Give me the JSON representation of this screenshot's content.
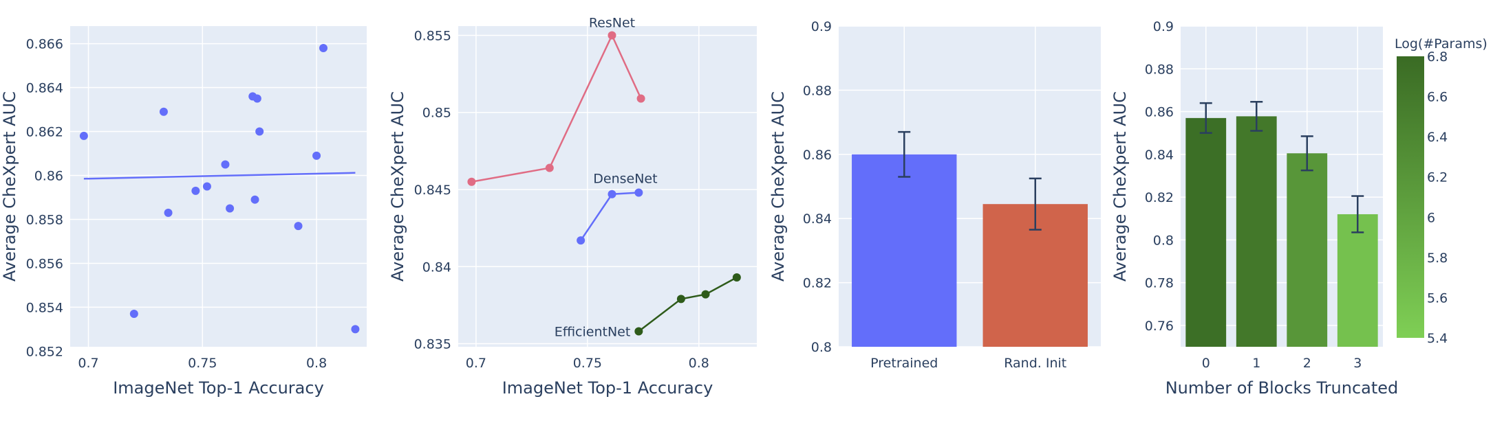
{
  "colors": {
    "plot_bg": "#E5ECF6",
    "grid": "#ffffff",
    "text": "#2a3f5f",
    "scatter": "#636EFA",
    "resnet": "#E06C84",
    "densenet": "#636EFA",
    "efficientnet": "#2E5B1A",
    "pretrained": "#636EFA",
    "rand_init": "#D0644B",
    "error_bar": "#2a3f5f"
  },
  "chart_data": [
    {
      "type": "scatter",
      "xlabel": "ImageNet Top-1 Accuracy",
      "ylabel": "Average CheXpert AUC",
      "xlim": [
        0.692,
        0.822
      ],
      "ylim": [
        0.8522,
        0.8668
      ],
      "xticks": [
        0.7,
        0.75,
        0.8
      ],
      "xtick_labels": [
        "0.7",
        "0.75",
        "0.8"
      ],
      "yticks": [
        0.852,
        0.854,
        0.856,
        0.858,
        0.86,
        0.862,
        0.864,
        0.866
      ],
      "ytick_labels": [
        "0.852",
        "0.854",
        "0.856",
        "0.858",
        "0.86",
        "0.862",
        "0.864",
        "0.866"
      ],
      "points": [
        {
          "x": 0.698,
          "y": 0.8618
        },
        {
          "x": 0.72,
          "y": 0.8537
        },
        {
          "x": 0.733,
          "y": 0.8629
        },
        {
          "x": 0.735,
          "y": 0.8583
        },
        {
          "x": 0.747,
          "y": 0.8593
        },
        {
          "x": 0.752,
          "y": 0.8595
        },
        {
          "x": 0.76,
          "y": 0.8605
        },
        {
          "x": 0.762,
          "y": 0.8585
        },
        {
          "x": 0.772,
          "y": 0.8636
        },
        {
          "x": 0.773,
          "y": 0.8589
        },
        {
          "x": 0.774,
          "y": 0.8635
        },
        {
          "x": 0.775,
          "y": 0.862
        },
        {
          "x": 0.792,
          "y": 0.8577
        },
        {
          "x": 0.8,
          "y": 0.8609
        },
        {
          "x": 0.803,
          "y": 0.8658
        },
        {
          "x": 0.817,
          "y": 0.853
        }
      ],
      "trendline": {
        "x": [
          0.698,
          0.817
        ],
        "y": [
          0.85985,
          0.86012
        ]
      }
    },
    {
      "type": "line",
      "xlabel": "ImageNet Top-1 Accuracy",
      "ylabel": "Average CheXpert AUC",
      "xlim": [
        0.692,
        0.826
      ],
      "ylim": [
        0.8348,
        0.8556
      ],
      "xticks": [
        0.7,
        0.75,
        0.8
      ],
      "xtick_labels": [
        "0.7",
        "0.75",
        "0.8"
      ],
      "yticks": [
        0.835,
        0.84,
        0.845,
        0.85,
        0.855
      ],
      "ytick_labels": [
        "0.835",
        "0.84",
        "0.845",
        "0.85",
        "0.855"
      ],
      "series": [
        {
          "name": "ResNet",
          "x": [
            0.698,
            0.733,
            0.761,
            0.774
          ],
          "y": [
            0.8455,
            0.8464,
            0.855,
            0.8509
          ]
        },
        {
          "name": "DenseNet",
          "x": [
            0.747,
            0.761,
            0.773
          ],
          "y": [
            0.8417,
            0.8447,
            0.8448
          ]
        },
        {
          "name": "EfficientNet",
          "x": [
            0.773,
            0.792,
            0.803,
            0.817
          ],
          "y": [
            0.8358,
            0.8379,
            0.8382,
            0.8393
          ]
        }
      ]
    },
    {
      "type": "bar",
      "ylabel": "Average CheXpert AUC",
      "ylim": [
        0.8,
        0.9
      ],
      "yticks": [
        0.8,
        0.82,
        0.84,
        0.86,
        0.88,
        0.9
      ],
      "ytick_labels": [
        "0.8",
        "0.82",
        "0.84",
        "0.86",
        "0.88",
        "0.9"
      ],
      "categories": [
        "Pretrained",
        "Rand. Init"
      ],
      "values": [
        0.86,
        0.8445
      ],
      "errors": [
        0.007,
        0.008
      ]
    },
    {
      "type": "bar",
      "xlabel": "Number of Blocks Truncated",
      "ylabel": "Average CheXpert AUC",
      "ylim": [
        0.75,
        0.9
      ],
      "yticks": [
        0.76,
        0.78,
        0.8,
        0.82,
        0.84,
        0.86,
        0.88,
        0.9
      ],
      "ytick_labels": [
        "0.76",
        "0.78",
        "0.8",
        "0.82",
        "0.84",
        "0.86",
        "0.88",
        "0.9"
      ],
      "categories": [
        "0",
        "1",
        "2",
        "3"
      ],
      "values": [
        0.857,
        0.8578,
        0.8405,
        0.812
      ],
      "errors": [
        0.007,
        0.0068,
        0.008,
        0.0085
      ],
      "log_params": [
        6.75,
        6.62,
        6.2,
        5.6
      ],
      "colorbar": {
        "title": "Log(#Params)",
        "range": [
          5.4,
          6.8
        ],
        "ticks": [
          5.4,
          5.6,
          5.8,
          6,
          6.2,
          6.4,
          6.6,
          6.8
        ],
        "tick_labels": [
          "5.4",
          "5.6",
          "5.8",
          "6",
          "6.2",
          "6.4",
          "6.6",
          "6.8"
        ],
        "color_low": "#7FCF55",
        "color_high": "#3A6B24"
      }
    }
  ]
}
